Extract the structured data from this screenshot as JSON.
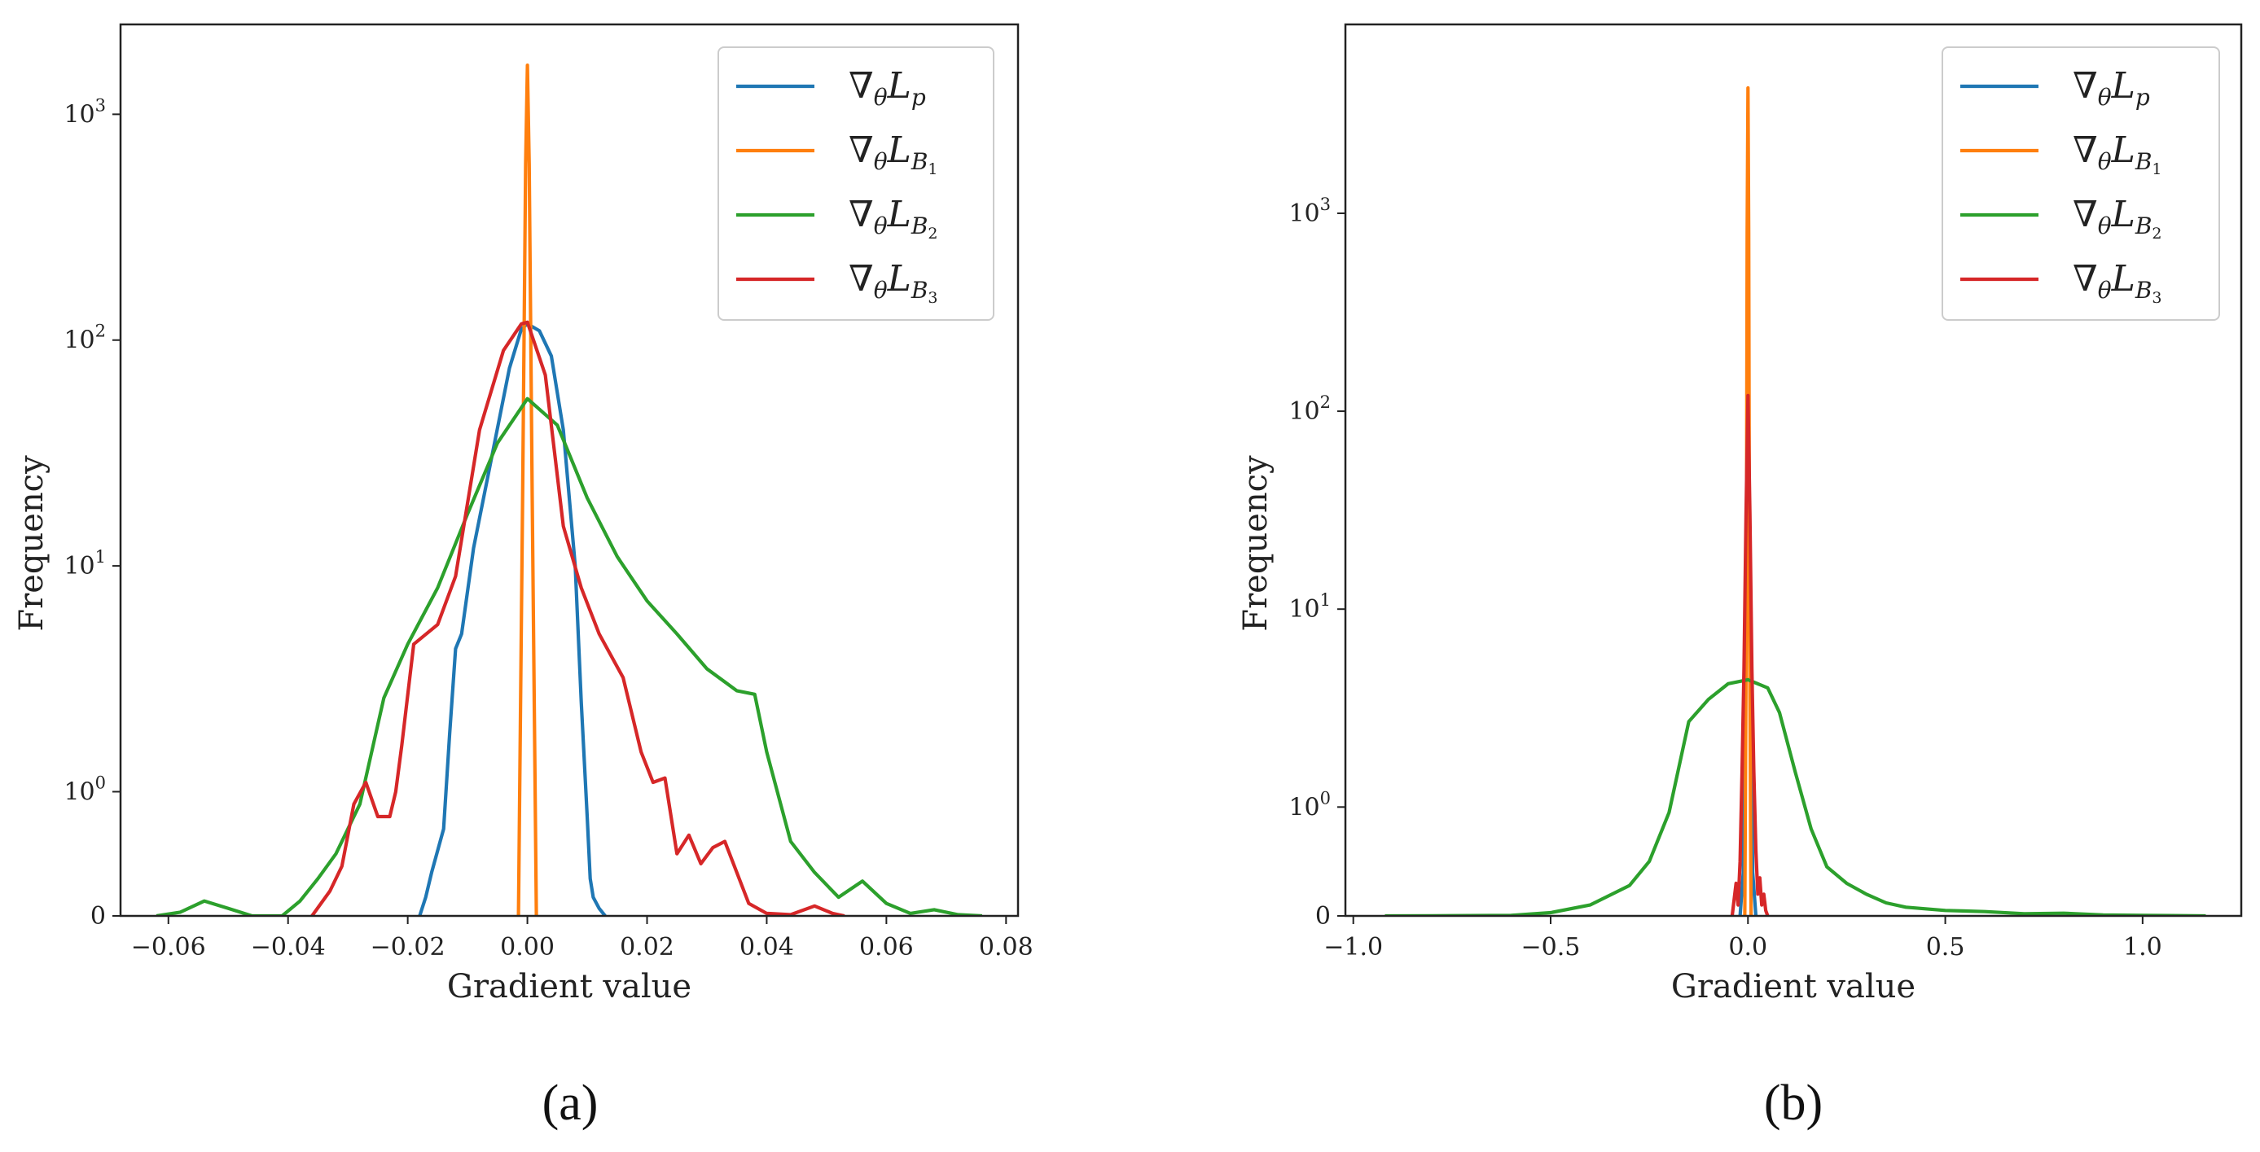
{
  "chart_data": [
    {
      "type": "line",
      "panel_label": "(a)",
      "xlabel": "Gradient value",
      "ylabel": "Frequency",
      "xlim": [
        -0.068,
        0.082
      ],
      "x_ticks": [
        -0.06,
        -0.04,
        -0.02,
        0.0,
        0.02,
        0.04,
        0.06,
        0.08
      ],
      "x_tick_labels": [
        "−0.06",
        "−0.04",
        "−0.02",
        "0.00",
        "0.02",
        "0.04",
        "0.06",
        "0.08"
      ],
      "y_scale": "symlog",
      "ylim": [
        0,
        2500
      ],
      "y_ticks": [
        0,
        1,
        10,
        100,
        1000
      ],
      "y_tick_labels": [
        {
          "base": "0",
          "exp": ""
        },
        {
          "base": "10",
          "exp": "0"
        },
        {
          "base": "10",
          "exp": "1"
        },
        {
          "base": "10",
          "exp": "2"
        },
        {
          "base": "10",
          "exp": "3"
        }
      ],
      "legend_position": "upper right",
      "series": [
        {
          "name": "∇θLp",
          "color": "#1f77b4",
          "x": [
            -0.018,
            -0.017,
            -0.016,
            -0.014,
            -0.013,
            -0.012,
            -0.011,
            -0.009,
            -0.006,
            -0.003,
            -0.001,
            0.0,
            0.002,
            0.004,
            0.006,
            0.008,
            0.009,
            0.01,
            0.0105,
            0.011,
            0.012,
            0.013
          ],
          "y": [
            0,
            0.15,
            0.35,
            0.7,
            1.8,
            4.3,
            5.0,
            12,
            30,
            75,
            112,
            118,
            110,
            85,
            40,
            10,
            2.5,
            0.8,
            0.3,
            0.15,
            0.06,
            0
          ]
        },
        {
          "name": "∇θLB1",
          "color": "#ff7f0e",
          "x": [
            -0.0015,
            -0.0008,
            -0.0003,
            0.0,
            0.0003,
            0.0008,
            0.0015
          ],
          "y": [
            0,
            20,
            600,
            1650,
            600,
            20,
            0
          ]
        },
        {
          "name": "∇θLB2",
          "color": "#2ca02c",
          "x": [
            -0.062,
            -0.058,
            -0.054,
            -0.05,
            -0.046,
            -0.041,
            -0.038,
            -0.035,
            -0.032,
            -0.028,
            -0.024,
            -0.02,
            -0.015,
            -0.01,
            -0.005,
            0.0,
            0.005,
            0.01,
            0.015,
            0.02,
            0.025,
            0.03,
            0.035,
            0.038,
            0.04,
            0.044,
            0.048,
            0.052,
            0.056,
            0.06,
            0.064,
            0.068,
            0.072,
            0.076
          ],
          "y": [
            0,
            0.03,
            0.12,
            0.06,
            0,
            0,
            0.12,
            0.3,
            0.5,
            0.9,
            2.6,
            4.5,
            8,
            17,
            35,
            55,
            42,
            20,
            11,
            7,
            5,
            3.5,
            2.8,
            2.7,
            1.5,
            0.6,
            0.35,
            0.15,
            0.28,
            0.1,
            0.02,
            0.05,
            0.01,
            0
          ]
        },
        {
          "name": "∇θLB3",
          "color": "#d62728",
          "x": [
            -0.036,
            -0.033,
            -0.031,
            -0.029,
            -0.027,
            -0.025,
            -0.023,
            -0.022,
            -0.021,
            -0.019,
            -0.015,
            -0.012,
            -0.008,
            -0.004,
            -0.001,
            0.0,
            0.003,
            0.006,
            0.009,
            0.012,
            0.016,
            0.019,
            0.021,
            0.023,
            0.025,
            0.027,
            0.029,
            0.031,
            0.033,
            0.035,
            0.037,
            0.04,
            0.044,
            0.048,
            0.051,
            0.053
          ],
          "y": [
            0,
            0.2,
            0.4,
            0.9,
            1.1,
            0.8,
            0.8,
            1.0,
            1.6,
            4.5,
            5.5,
            9,
            40,
            90,
            118,
            120,
            70,
            15,
            8,
            5,
            3.2,
            1.5,
            1.1,
            1.15,
            0.5,
            0.65,
            0.42,
            0.55,
            0.6,
            0.35,
            0.1,
            0.02,
            0.01,
            0.08,
            0.02,
            0
          ]
        }
      ]
    },
    {
      "type": "line",
      "panel_label": "(b)",
      "xlabel": "Gradient value",
      "ylabel": "Frequency",
      "xlim": [
        -1.02,
        1.25
      ],
      "x_ticks": [
        -1.0,
        -0.5,
        0.0,
        0.5,
        1.0
      ],
      "x_tick_labels": [
        "−1.0",
        "−0.5",
        "0.0",
        "0.5",
        "1.0"
      ],
      "y_scale": "symlog",
      "ylim": [
        0,
        9000
      ],
      "y_ticks": [
        0,
        1,
        10,
        100,
        1000
      ],
      "y_tick_labels": [
        {
          "base": "0",
          "exp": ""
        },
        {
          "base": "10",
          "exp": "0"
        },
        {
          "base": "10",
          "exp": "1"
        },
        {
          "base": "10",
          "exp": "2"
        },
        {
          "base": "10",
          "exp": "3"
        }
      ],
      "legend_position": "upper right",
      "series": [
        {
          "name": "∇θLp",
          "color": "#1f77b4",
          "x": [
            -0.02,
            -0.012,
            -0.006,
            -0.002,
            0.0,
            0.002,
            0.006,
            0.012,
            0.02
          ],
          "y": [
            0,
            0.4,
            5,
            60,
            110,
            60,
            5,
            0.4,
            0
          ]
        },
        {
          "name": "∇θLB1",
          "color": "#ff7f0e",
          "x": [
            -0.008,
            -0.004,
            -0.002,
            0.0,
            0.002,
            0.004,
            0.008
          ],
          "y": [
            0,
            10,
            800,
            4300,
            800,
            10,
            0
          ]
        },
        {
          "name": "∇θLB2",
          "color": "#2ca02c",
          "x": [
            -0.92,
            -0.8,
            -0.6,
            -0.5,
            -0.4,
            -0.3,
            -0.25,
            -0.2,
            -0.15,
            -0.1,
            -0.05,
            0.0,
            0.05,
            0.08,
            0.12,
            0.16,
            0.2,
            0.25,
            0.3,
            0.35,
            0.4,
            0.5,
            0.6,
            0.7,
            0.8,
            0.9,
            1.0,
            1.16
          ],
          "y": [
            0,
            0.001,
            0.005,
            0.03,
            0.1,
            0.28,
            0.5,
            0.95,
            2.7,
            3.5,
            4.2,
            4.4,
            4.0,
            3.0,
            1.5,
            0.8,
            0.45,
            0.3,
            0.2,
            0.12,
            0.08,
            0.05,
            0.04,
            0.02,
            0.025,
            0.008,
            0.005,
            0
          ]
        },
        {
          "name": "∇θLB3",
          "color": "#d62728",
          "x": [
            -0.04,
            -0.03,
            -0.025,
            -0.02,
            -0.015,
            -0.01,
            -0.005,
            0.0,
            0.005,
            0.01,
            0.015,
            0.02,
            0.025,
            0.03,
            0.035,
            0.04,
            0.045,
            0.05
          ],
          "y": [
            0,
            0.3,
            0.1,
            0.5,
            1.5,
            5,
            30,
            120,
            30,
            5,
            1.5,
            0.6,
            0.2,
            0.35,
            0.1,
            0.2,
            0.05,
            0
          ]
        }
      ]
    }
  ]
}
